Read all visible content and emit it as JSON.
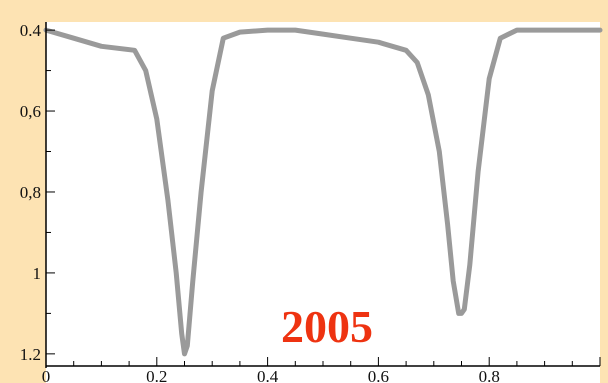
{
  "chart_data": {
    "type": "line",
    "title": "",
    "xlabel": "",
    "ylabel": "",
    "xlim": [
      0,
      1.0
    ],
    "ylim": [
      1.23,
      0.38
    ],
    "y_inverted": true,
    "grid": false,
    "x_ticks": [
      "0",
      "0.2",
      "0.4",
      "0.6",
      "0.8"
    ],
    "y_ticks": [
      "0.4",
      "0,6",
      "0,8",
      "1",
      "1.2"
    ],
    "annotation": "2005",
    "colors": {
      "line": "#9a9a9a",
      "annotation": "#ee3311",
      "page_bg": "#fde3b3",
      "plot_bg": "#ffffff"
    },
    "series": [
      {
        "x": [
          0.0,
          0.05,
          0.1,
          0.16,
          0.18,
          0.2,
          0.22,
          0.235,
          0.245,
          0.25,
          0.255,
          0.265,
          0.28,
          0.3,
          0.32,
          0.35,
          0.4,
          0.45,
          0.5,
          0.55,
          0.6,
          0.65,
          0.67,
          0.69,
          0.71,
          0.725,
          0.735,
          0.745,
          0.75,
          0.755,
          0.765,
          0.78,
          0.8,
          0.82,
          0.85,
          0.9,
          0.95,
          1.0
        ],
        "y": [
          0.4,
          0.42,
          0.44,
          0.45,
          0.5,
          0.62,
          0.82,
          1.0,
          1.15,
          1.2,
          1.18,
          1.02,
          0.8,
          0.55,
          0.42,
          0.405,
          0.4,
          0.4,
          0.41,
          0.42,
          0.43,
          0.45,
          0.48,
          0.56,
          0.7,
          0.88,
          1.02,
          1.1,
          1.1,
          1.09,
          0.98,
          0.75,
          0.52,
          0.42,
          0.4,
          0.4,
          0.4,
          0.4
        ]
      }
    ]
  }
}
